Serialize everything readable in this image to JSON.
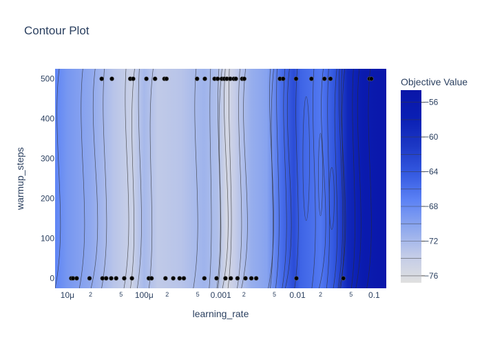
{
  "chart_data": {
    "type": "contour",
    "title": "Contour Plot",
    "xlabel": "learning_rate",
    "ylabel": "warmup_steps",
    "x_scale": "log",
    "xlim": [
      6.9e-06,
      0.144
    ],
    "ylim": [
      -25,
      525
    ],
    "x_major_ticks": [
      {
        "value": 1e-05,
        "label": "10μ"
      },
      {
        "value": 0.0001,
        "label": "100μ"
      },
      {
        "value": 0.001,
        "label": "0.001"
      },
      {
        "value": 0.01,
        "label": "0.01"
      },
      {
        "value": 0.1,
        "label": "0.1"
      }
    ],
    "x_minor_ticks": [
      {
        "value": 2e-05,
        "label": "2"
      },
      {
        "value": 5e-05,
        "label": "5"
      },
      {
        "value": 0.0002,
        "label": "2"
      },
      {
        "value": 0.0005,
        "label": "5"
      },
      {
        "value": 0.002,
        "label": "2"
      },
      {
        "value": 0.005,
        "label": "5"
      },
      {
        "value": 0.02,
        "label": "2"
      },
      {
        "value": 0.05,
        "label": "5"
      }
    ],
    "y_ticks": [
      0,
      100,
      200,
      300,
      400,
      500
    ],
    "colorbar": {
      "title": "Objective Value",
      "range": [
        -76.8,
        -54.6
      ],
      "ticks": [
        -56,
        -60,
        -64,
        -68,
        -72,
        -76
      ],
      "colors": [
        "#e0e0e0",
        "#c2cbe8",
        "#8ea8ee",
        "#5c82f5",
        "#3358e0",
        "#1c37c4",
        "#0a1fb4",
        "#0a16a8"
      ]
    },
    "objective_profile": [
      {
        "lr": 6.9e-06,
        "value": -67.5
      },
      {
        "lr": 1e-05,
        "value": -69
      },
      {
        "lr": 2e-05,
        "value": -70.5
      },
      {
        "lr": 4e-05,
        "value": -73
      },
      {
        "lr": 7e-05,
        "value": -74.5
      },
      {
        "lr": 0.0001,
        "value": -72
      },
      {
        "lr": 0.00015,
        "value": -73.5
      },
      {
        "lr": 0.0003,
        "value": -73
      },
      {
        "lr": 0.0006,
        "value": -71.5
      },
      {
        "lr": 0.0009,
        "value": -72.5
      },
      {
        "lr": 0.0012,
        "value": -75.5
      },
      {
        "lr": 0.0015,
        "value": -74
      },
      {
        "lr": 0.0025,
        "value": -71
      },
      {
        "lr": 0.004,
        "value": -70
      },
      {
        "lr": 0.006,
        "value": -66
      },
      {
        "lr": 0.009,
        "value": -63
      },
      {
        "lr": 0.011,
        "value": -65
      },
      {
        "lr": 0.02,
        "value": -66.5
      },
      {
        "lr": 0.03,
        "value": -64
      },
      {
        "lr": 0.045,
        "value": -59
      },
      {
        "lr": 0.07,
        "value": -56.5
      },
      {
        "lr": 0.144,
        "value": -55
      }
    ],
    "points": [
      {
        "x": 1.12e-05,
        "y": 0
      },
      {
        "x": 1.18e-05,
        "y": 0
      },
      {
        "x": 1.32e-05,
        "y": 0
      },
      {
        "x": 1.94e-05,
        "y": 0
      },
      {
        "x": 2.86e-05,
        "y": 0
      },
      {
        "x": 3.2e-05,
        "y": 0
      },
      {
        "x": 3.72e-05,
        "y": 0
      },
      {
        "x": 4.32e-05,
        "y": 0
      },
      {
        "x": 5.5e-05,
        "y": 0
      },
      {
        "x": 6.94e-05,
        "y": 0
      },
      {
        "x": 0.000115,
        "y": 0
      },
      {
        "x": 0.000125,
        "y": 0
      },
      {
        "x": 0.00019,
        "y": 0
      },
      {
        "x": 0.00024,
        "y": 0
      },
      {
        "x": 0.00029,
        "y": 0
      },
      {
        "x": 0.00033,
        "y": 0
      },
      {
        "x": 0.00061,
        "y": 0
      },
      {
        "x": 0.00088,
        "y": 0
      },
      {
        "x": 0.00115,
        "y": 0
      },
      {
        "x": 0.00135,
        "y": 0
      },
      {
        "x": 0.00165,
        "y": 0
      },
      {
        "x": 0.0021,
        "y": 0
      },
      {
        "x": 0.0025,
        "y": 0
      },
      {
        "x": 0.0029,
        "y": 0
      },
      {
        "x": 0.0097,
        "y": 0
      },
      {
        "x": 0.0397,
        "y": 0
      },
      {
        "x": 2.8e-05,
        "y": 500
      },
      {
        "x": 3.8e-05,
        "y": 500
      },
      {
        "x": 6.6e-05,
        "y": 500
      },
      {
        "x": 7.2e-05,
        "y": 500
      },
      {
        "x": 0.000107,
        "y": 500
      },
      {
        "x": 0.000139,
        "y": 500
      },
      {
        "x": 0.000184,
        "y": 500
      },
      {
        "x": 0.000196,
        "y": 500
      },
      {
        "x": 0.00049,
        "y": 500
      },
      {
        "x": 0.00062,
        "y": 500
      },
      {
        "x": 0.00083,
        "y": 500
      },
      {
        "x": 0.00091,
        "y": 500
      },
      {
        "x": 0.00103,
        "y": 500
      },
      {
        "x": 0.00111,
        "y": 500
      },
      {
        "x": 0.0012,
        "y": 500
      },
      {
        "x": 0.00133,
        "y": 500
      },
      {
        "x": 0.00148,
        "y": 500
      },
      {
        "x": 0.00157,
        "y": 500
      },
      {
        "x": 0.0019,
        "y": 500
      },
      {
        "x": 0.00202,
        "y": 500
      },
      {
        "x": 0.0059,
        "y": 500
      },
      {
        "x": 0.0065,
        "y": 500
      },
      {
        "x": 0.0096,
        "y": 500
      },
      {
        "x": 0.0152,
        "y": 500
      },
      {
        "x": 0.0225,
        "y": 500
      },
      {
        "x": 0.027,
        "y": 500
      },
      {
        "x": 0.087,
        "y": 500
      },
      {
        "x": 0.092,
        "y": 500
      }
    ]
  }
}
